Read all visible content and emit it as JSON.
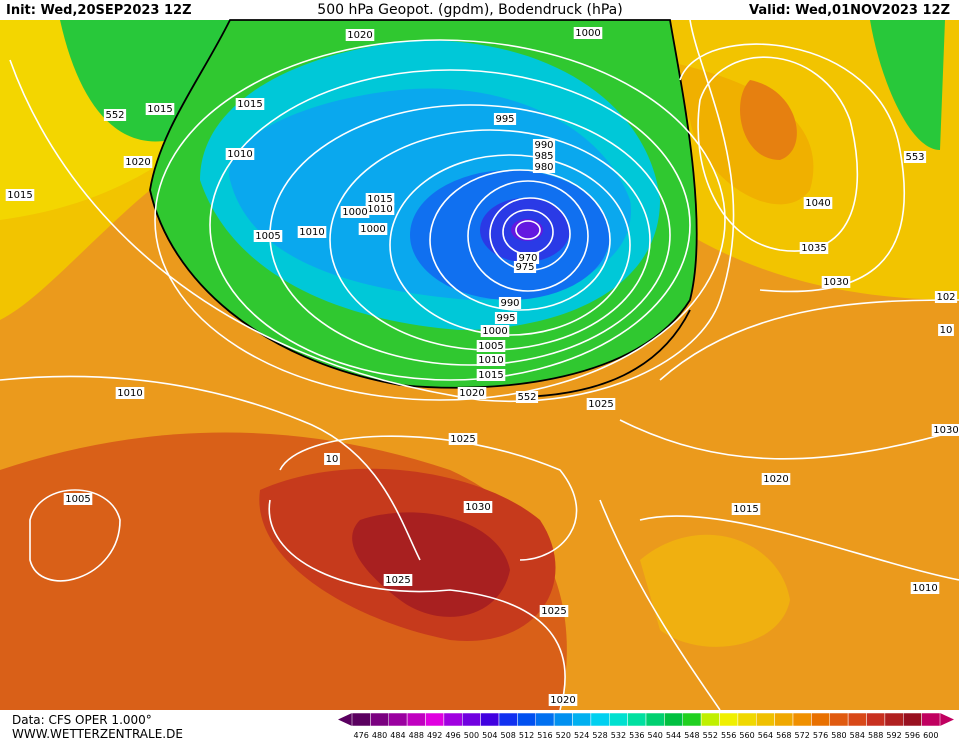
{
  "header": {
    "init": "Init: Wed,20SEP2023 12Z",
    "title": "500 hPa Geopot. (gpdm), Bodendruck (hPa)",
    "valid": "Valid: Wed,01NOV2023 12Z"
  },
  "footer": {
    "source": "Data: CFS OPER 1.000°",
    "site": "WWW.WETTERZENTRALE.DE"
  },
  "isobar_labels": [
    "1020",
    "1000",
    "552",
    "1015",
    "1015",
    "995",
    "1010",
    "990",
    "985",
    "980",
    "1020",
    "553",
    "1015",
    "1015",
    "1010",
    "1000",
    "1040",
    "1005",
    "1010",
    "1000",
    "1035",
    "970",
    "975",
    "1030",
    "102",
    "990",
    "995",
    "1000",
    "1005",
    "1010",
    "1015",
    "10",
    "1020",
    "552",
    "1025",
    "1010",
    "1030",
    "1025",
    "10",
    "1005",
    "1030",
    "1020",
    "1015",
    "1025",
    "1025",
    "1010",
    "1020"
  ],
  "colorbar": {
    "levels": [
      476,
      480,
      484,
      488,
      492,
      496,
      500,
      504,
      508,
      512,
      516,
      520,
      524,
      528,
      532,
      536,
      540,
      544,
      548,
      552,
      556,
      560,
      564,
      568,
      572,
      576,
      580,
      584,
      588,
      592,
      596,
      600
    ],
    "colors": [
      "#5a0060",
      "#7a0080",
      "#9a00a0",
      "#c000c0",
      "#e000e0",
      "#a000e0",
      "#7000e0",
      "#4000e0",
      "#1030f0",
      "#0050f0",
      "#0070f0",
      "#0090f0",
      "#00b0f0",
      "#00d0f0",
      "#00e0d0",
      "#00e0a0",
      "#00d070",
      "#00c040",
      "#20d020",
      "#c0f000",
      "#f0f000",
      "#f0d800",
      "#f0c000",
      "#f0a800",
      "#f09000",
      "#e87000",
      "#e05a10",
      "#d84818",
      "#c83020",
      "#b02020",
      "#981020",
      "#c00060"
    ]
  }
}
